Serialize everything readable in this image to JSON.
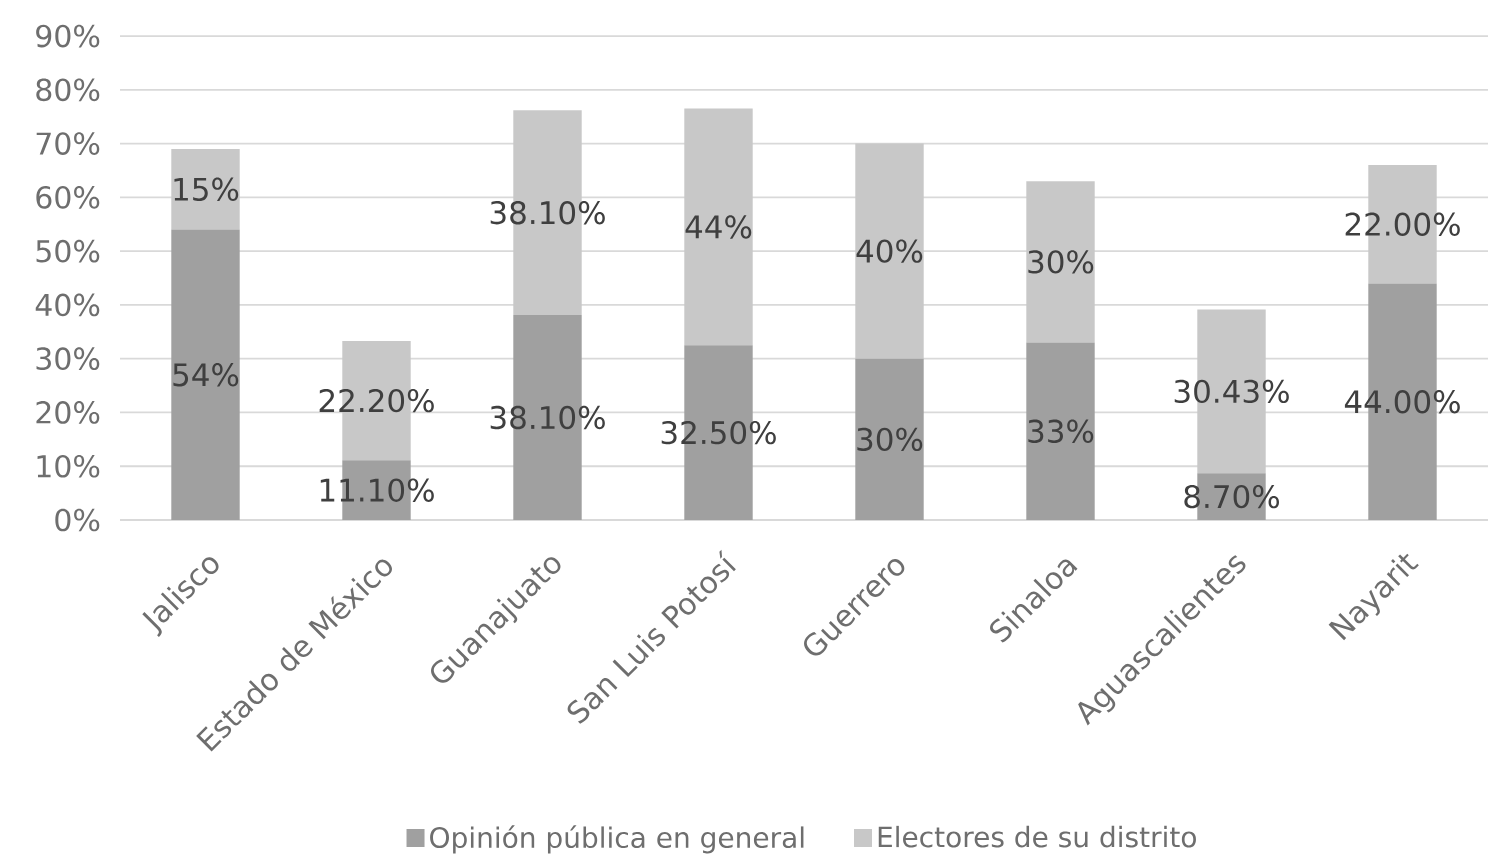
{
  "chart_data": {
    "type": "bar",
    "stacked": true,
    "categories": [
      "Jalisco",
      "Estado de México",
      "Guanajuato",
      "San Luis Potosí",
      "Guerrero",
      "Sinaloa",
      "Aguascalientes",
      "Nayarit"
    ],
    "series": [
      {
        "name": "Opinión pública en general",
        "color": "#a0a0a0",
        "values": [
          54,
          11.1,
          38.1,
          32.5,
          30,
          33,
          8.7,
          44
        ],
        "value_labels": [
          "54%",
          "11.10%",
          "38.10%",
          "32.50%",
          "30%",
          "33%",
          "8.70%",
          "44.00%"
        ]
      },
      {
        "name": "Electores de su distrito",
        "color": "#c8c8c8",
        "values": [
          15,
          22.2,
          38.1,
          44,
          40,
          30,
          30.43,
          22
        ],
        "value_labels": [
          "15%",
          "22.20%",
          "38.10%",
          "44%",
          "40%",
          "30%",
          "30.43%",
          "22.00%"
        ]
      }
    ],
    "ylim": [
      0,
      90
    ],
    "yticks": [
      {
        "value": 0,
        "label": "0%"
      },
      {
        "value": 10,
        "label": "10%"
      },
      {
        "value": 20,
        "label": "20%"
      },
      {
        "value": 30,
        "label": "30%"
      },
      {
        "value": 40,
        "label": "40%"
      },
      {
        "value": 50,
        "label": "50%"
      },
      {
        "value": 60,
        "label": "60%"
      },
      {
        "value": 70,
        "label": "70%"
      },
      {
        "value": 80,
        "label": "80%"
      },
      {
        "value": 90,
        "label": "90%"
      }
    ],
    "grid": "y",
    "legend": "bottom"
  }
}
